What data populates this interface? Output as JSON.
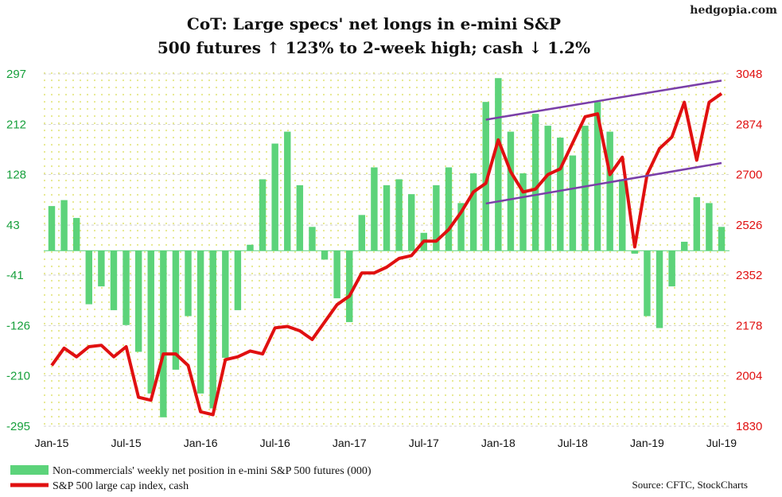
{
  "brand": "hedgopia.com",
  "chart_data": {
    "type": "bar+line",
    "title": "CoT: Large specs' net longs in e-mini S&P",
    "subtitle": "500 futures ↑ 123% to 2-week high; cash ↓ 1.2%",
    "x_tick_labels": [
      "Jan-15",
      "Jul-15",
      "Jan-16",
      "Jul-16",
      "Jan-17",
      "Jul-17",
      "Jan-18",
      "Jul-18",
      "Jan-19",
      "Jul-19"
    ],
    "left_axis": {
      "ticks": [
        297,
        212,
        128,
        43,
        -41,
        -126,
        -210,
        -295
      ],
      "range": [
        -295,
        297
      ]
    },
    "right_axis": {
      "ticks": [
        3048,
        2874,
        2700,
        2526,
        2352,
        2178,
        2004,
        1830
      ],
      "range": [
        1830,
        3048
      ]
    },
    "series": [
      {
        "name": "Non-commercials' weekly net position in e-mini S&P 500 futures (000)",
        "type": "bar",
        "axis": "left",
        "color": "#5cd37a",
        "points": [
          [
            "2015-01",
            75
          ],
          [
            "2015-02",
            85
          ],
          [
            "2015-03",
            55
          ],
          [
            "2015-04",
            -90
          ],
          [
            "2015-05",
            -60
          ],
          [
            "2015-06",
            -100
          ],
          [
            "2015-07",
            -125
          ],
          [
            "2015-08",
            -170
          ],
          [
            "2015-09",
            -240
          ],
          [
            "2015-10",
            -280
          ],
          [
            "2015-11",
            -200
          ],
          [
            "2015-12",
            -110
          ],
          [
            "2016-01",
            -240
          ],
          [
            "2016-02",
            -265
          ],
          [
            "2016-03",
            -180
          ],
          [
            "2016-04",
            -100
          ],
          [
            "2016-05",
            10
          ],
          [
            "2016-06",
            120
          ],
          [
            "2016-07",
            180
          ],
          [
            "2016-08",
            200
          ],
          [
            "2016-09",
            110
          ],
          [
            "2016-10",
            40
          ],
          [
            "2016-11",
            -15
          ],
          [
            "2016-12",
            -80
          ],
          [
            "2017-01",
            -120
          ],
          [
            "2017-02",
            60
          ],
          [
            "2017-03",
            140
          ],
          [
            "2017-04",
            110
          ],
          [
            "2017-05",
            120
          ],
          [
            "2017-06",
            95
          ],
          [
            "2017-07",
            30
          ],
          [
            "2017-08",
            110
          ],
          [
            "2017-09",
            140
          ],
          [
            "2017-10",
            80
          ],
          [
            "2017-11",
            130
          ],
          [
            "2017-12",
            250
          ],
          [
            "2018-01",
            290
          ],
          [
            "2018-02",
            200
          ],
          [
            "2018-03",
            130
          ],
          [
            "2018-04",
            230
          ],
          [
            "2018-05",
            210
          ],
          [
            "2018-06",
            190
          ],
          [
            "2018-07",
            160
          ],
          [
            "2018-08",
            210
          ],
          [
            "2018-09",
            250
          ],
          [
            "2018-10",
            200
          ],
          [
            "2018-11",
            120
          ],
          [
            "2018-12",
            -5
          ],
          [
            "2019-01",
            -110
          ],
          [
            "2019-02",
            -130
          ],
          [
            "2019-03",
            -60
          ],
          [
            "2019-04",
            15
          ],
          [
            "2019-05",
            90
          ],
          [
            "2019-06",
            80
          ],
          [
            "2019-07",
            40
          ]
        ]
      },
      {
        "name": "S&P 500 large cap index, cash",
        "type": "line",
        "axis": "right",
        "color": "#e01010",
        "points": [
          [
            "2015-01",
            2040
          ],
          [
            "2015-02",
            2100
          ],
          [
            "2015-03",
            2070
          ],
          [
            "2015-04",
            2105
          ],
          [
            "2015-05",
            2110
          ],
          [
            "2015-06",
            2070
          ],
          [
            "2015-07",
            2105
          ],
          [
            "2015-08",
            1930
          ],
          [
            "2015-09",
            1920
          ],
          [
            "2015-10",
            2080
          ],
          [
            "2015-11",
            2080
          ],
          [
            "2015-12",
            2040
          ],
          [
            "2016-01",
            1880
          ],
          [
            "2016-02",
            1870
          ],
          [
            "2016-03",
            2060
          ],
          [
            "2016-04",
            2070
          ],
          [
            "2016-05",
            2090
          ],
          [
            "2016-06",
            2080
          ],
          [
            "2016-07",
            2170
          ],
          [
            "2016-08",
            2175
          ],
          [
            "2016-09",
            2160
          ],
          [
            "2016-10",
            2130
          ],
          [
            "2016-11",
            2190
          ],
          [
            "2016-12",
            2250
          ],
          [
            "2017-01",
            2280
          ],
          [
            "2017-02",
            2360
          ],
          [
            "2017-03",
            2360
          ],
          [
            "2017-04",
            2380
          ],
          [
            "2017-05",
            2410
          ],
          [
            "2017-06",
            2420
          ],
          [
            "2017-07",
            2470
          ],
          [
            "2017-08",
            2470
          ],
          [
            "2017-09",
            2510
          ],
          [
            "2017-10",
            2570
          ],
          [
            "2017-11",
            2640
          ],
          [
            "2017-12",
            2670
          ],
          [
            "2018-01",
            2820
          ],
          [
            "2018-02",
            2710
          ],
          [
            "2018-03",
            2640
          ],
          [
            "2018-04",
            2650
          ],
          [
            "2018-05",
            2700
          ],
          [
            "2018-06",
            2720
          ],
          [
            "2018-07",
            2810
          ],
          [
            "2018-08",
            2900
          ],
          [
            "2018-09",
            2910
          ],
          [
            "2018-10",
            2700
          ],
          [
            "2018-11",
            2760
          ],
          [
            "2018-12",
            2450
          ],
          [
            "2019-01",
            2700
          ],
          [
            "2019-02",
            2790
          ],
          [
            "2019-03",
            2830
          ],
          [
            "2019-04",
            2950
          ],
          [
            "2019-05",
            2750
          ],
          [
            "2019-06",
            2950
          ],
          [
            "2019-07",
            2980
          ]
        ]
      }
    ],
    "trend_channel": {
      "color": "#7a3fa8",
      "upper": [
        [
          "2017-12",
          2890
        ],
        [
          "2019-07",
          3025
        ]
      ],
      "lower": [
        [
          "2017-12",
          2600
        ],
        [
          "2019-07",
          2740
        ]
      ]
    },
    "legend_placement": "bottom-left",
    "background_grid": "dotted"
  },
  "source": "Source: CFTC, StockCharts"
}
